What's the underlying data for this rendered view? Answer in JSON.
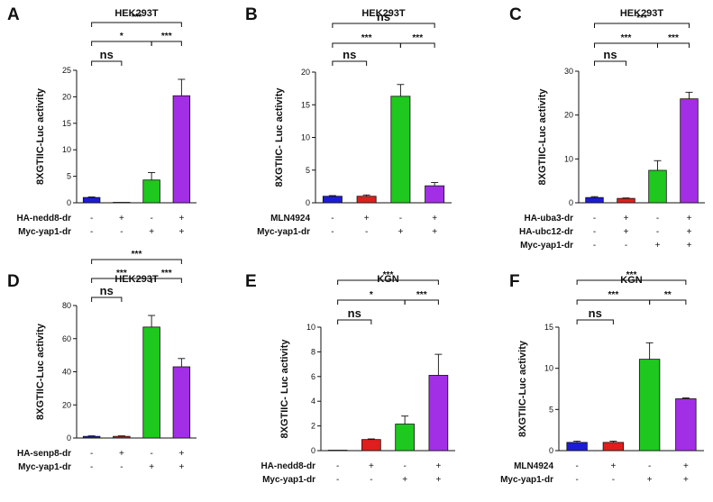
{
  "figure": {
    "panel_count": 6
  },
  "colors": {
    "blue": "#1c1cd6",
    "red": "#e01e1e",
    "green": "#1ec81e",
    "purple": "#a22fe6"
  },
  "chart_data": [
    {
      "letter": "A",
      "type": "bar",
      "title": "HEK293T",
      "ylabel": "8XGTIIC-Luc activity",
      "ylim": [
        0,
        25
      ],
      "yticks": [
        0,
        5,
        10,
        15,
        20,
        25
      ],
      "values": [
        1.0,
        0.05,
        4.3,
        20.2
      ],
      "errors": [
        0.1,
        0.0,
        1.4,
        3.1
      ],
      "bar_colors": [
        "blue",
        "red",
        "green",
        "purple"
      ],
      "conditions": [
        {
          "label": "HA-nedd8-dr",
          "signs": [
            "-",
            "+",
            "-",
            "+"
          ]
        },
        {
          "label": "Myc-yap1-dr",
          "signs": [
            "-",
            "-",
            "+",
            "+"
          ]
        }
      ],
      "comparisons": [
        {
          "from": 1,
          "to": 2,
          "label": "ns",
          "level": 1
        },
        {
          "from": 1,
          "to": 3,
          "label": "*",
          "level": 2
        },
        {
          "from": 3,
          "to": 4,
          "label": "***",
          "level": 2
        },
        {
          "from": 1,
          "to": 4,
          "label": "***",
          "level": 3
        }
      ]
    },
    {
      "letter": "B",
      "type": "bar",
      "title": "HEK293T",
      "ylabel": "8XGTIIC- Luc activity",
      "ylim": [
        0,
        20
      ],
      "yticks": [
        0,
        5,
        10,
        15,
        20
      ],
      "values": [
        1.0,
        1.0,
        16.3,
        2.6
      ],
      "errors": [
        0.1,
        0.2,
        1.8,
        0.5
      ],
      "bar_colors": [
        "blue",
        "red",
        "green",
        "purple"
      ],
      "conditions": [
        {
          "label": "MLN4924",
          "signs": [
            "-",
            "+",
            "-",
            "+"
          ]
        },
        {
          "label": "Myc-yap1-dr",
          "signs": [
            "-",
            "-",
            "+",
            "+"
          ]
        }
      ],
      "comparisons": [
        {
          "from": 1,
          "to": 2,
          "label": "ns",
          "level": 1
        },
        {
          "from": 1,
          "to": 3,
          "label": "***",
          "level": 2
        },
        {
          "from": 3,
          "to": 4,
          "label": "***",
          "level": 2
        },
        {
          "from": 1,
          "to": 4,
          "label": "ns",
          "level": 3
        }
      ]
    },
    {
      "letter": "C",
      "type": "bar",
      "title": "HEK293T",
      "ylabel": "8XGTIIC-Luc activity",
      "ylim": [
        0,
        30
      ],
      "yticks": [
        0,
        10,
        20,
        30
      ],
      "values": [
        1.2,
        1.0,
        7.4,
        23.7
      ],
      "errors": [
        0.2,
        0.1,
        2.2,
        1.5
      ],
      "bar_colors": [
        "blue",
        "red",
        "green",
        "purple"
      ],
      "conditions": [
        {
          "label": "HA-uba3-dr",
          "signs": [
            "-",
            "+",
            "-",
            "+"
          ]
        },
        {
          "label": "HA-ubc12-dr",
          "signs": [
            "-",
            "+",
            "-",
            "+"
          ]
        },
        {
          "label": "Myc-yap1-dr",
          "signs": [
            "-",
            "-",
            "+",
            "+"
          ]
        }
      ],
      "comparisons": [
        {
          "from": 1,
          "to": 2,
          "label": "ns",
          "level": 1
        },
        {
          "from": 1,
          "to": 3,
          "label": "***",
          "level": 2
        },
        {
          "from": 3,
          "to": 4,
          "label": "***",
          "level": 2
        },
        {
          "from": 1,
          "to": 4,
          "label": "***",
          "level": 3
        }
      ]
    },
    {
      "letter": "D",
      "type": "bar",
      "title": "HEK293T",
      "ylabel": "8XGTIIC-Luc activity",
      "ylim": [
        0,
        80
      ],
      "yticks": [
        0,
        20,
        40,
        60,
        80
      ],
      "values": [
        1.0,
        1.0,
        67.0,
        43.0
      ],
      "errors": [
        0.3,
        0.3,
        7.0,
        5.0
      ],
      "bar_colors": [
        "blue",
        "red",
        "green",
        "purple"
      ],
      "conditions": [
        {
          "label": "HA-senp8-dr",
          "signs": [
            "-",
            "+",
            "-",
            "+"
          ]
        },
        {
          "label": "Myc-yap1-dr",
          "signs": [
            "-",
            "-",
            "+",
            "+"
          ]
        }
      ],
      "comparisons": [
        {
          "from": 1,
          "to": 2,
          "label": "ns",
          "level": 1
        },
        {
          "from": 1,
          "to": 3,
          "label": "***",
          "level": 2
        },
        {
          "from": 3,
          "to": 4,
          "label": "***",
          "level": 2
        },
        {
          "from": 1,
          "to": 4,
          "label": "***",
          "level": 3
        }
      ]
    },
    {
      "letter": "E",
      "type": "bar",
      "title": "KGN",
      "ylabel": "8XGTIIC- Luc activity",
      "ylim": [
        0,
        10
      ],
      "yticks": [
        0,
        2,
        4,
        6,
        8,
        10
      ],
      "values": [
        0.02,
        0.9,
        2.15,
        6.1
      ],
      "errors": [
        0.0,
        0.05,
        0.65,
        1.7
      ],
      "bar_colors": [
        "blue",
        "red",
        "green",
        "purple"
      ],
      "conditions": [
        {
          "label": "HA-nedd8-dr",
          "signs": [
            "-",
            "+",
            "-",
            "+"
          ]
        },
        {
          "label": "Myc-yap1-dr",
          "signs": [
            "-",
            "-",
            "+",
            "+"
          ]
        }
      ],
      "comparisons": [
        {
          "from": 1,
          "to": 2,
          "label": "ns",
          "level": 1
        },
        {
          "from": 1,
          "to": 3,
          "label": "*",
          "level": 2
        },
        {
          "from": 3,
          "to": 4,
          "label": "***",
          "level": 2
        },
        {
          "from": 1,
          "to": 4,
          "label": "***",
          "level": 3
        }
      ]
    },
    {
      "letter": "F",
      "type": "bar",
      "title": "KGN",
      "ylabel": "8XGTIIC-Luc activity",
      "ylim": [
        0,
        15
      ],
      "yticks": [
        0,
        5,
        10,
        15
      ],
      "values": [
        1.0,
        1.0,
        11.1,
        6.3
      ],
      "errors": [
        0.15,
        0.15,
        2.0,
        0.1
      ],
      "bar_colors": [
        "blue",
        "red",
        "green",
        "purple"
      ],
      "conditions": [
        {
          "label": "MLN4924",
          "signs": [
            "-",
            "+",
            "-",
            "+"
          ]
        },
        {
          "label": "Myc-yap1-dr",
          "signs": [
            "-",
            "-",
            "+",
            "+"
          ]
        }
      ],
      "comparisons": [
        {
          "from": 1,
          "to": 2,
          "label": "ns",
          "level": 1
        },
        {
          "from": 1,
          "to": 3,
          "label": "***",
          "level": 2
        },
        {
          "from": 3,
          "to": 4,
          "label": "**",
          "level": 2
        },
        {
          "from": 1,
          "to": 4,
          "label": "***",
          "level": 3
        }
      ]
    }
  ]
}
